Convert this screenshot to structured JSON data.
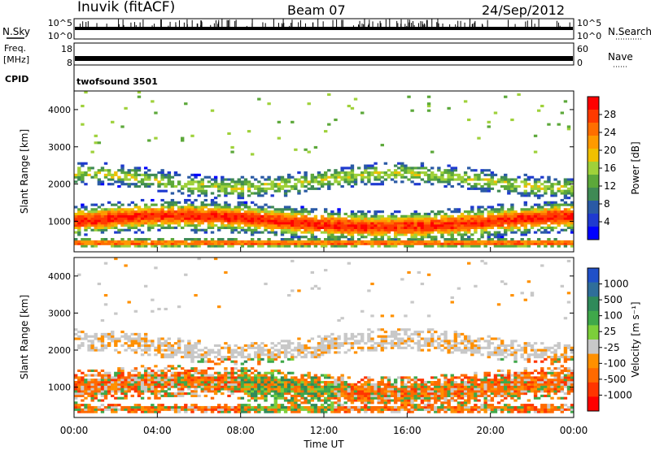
{
  "header": {
    "station": "Inuvik (fitACF)",
    "beam": "Beam 07",
    "date": "24/Sep/2012"
  },
  "panels": {
    "nsky": {
      "label": "N.Sky",
      "right_label": "N.Search",
      "left_ticks": [
        "10^5",
        "10^0"
      ],
      "right_ticks": [
        "10^5",
        "10^0"
      ]
    },
    "freq": {
      "label_line1": "Freq.",
      "label_line2": "[MHz]",
      "right_label": "Nave",
      "left_ticks": [
        "18",
        "8"
      ],
      "right_ticks": [
        "60",
        "0"
      ]
    },
    "cpid": {
      "label": "CPID",
      "value": "twofsound 3501"
    }
  },
  "power_colorbar": {
    "label": "Power [dB]",
    "ticks": [
      "28",
      "24",
      "20",
      "16",
      "12",
      "8",
      "4"
    ],
    "colors": [
      "#ff0000",
      "#ff3a00",
      "#ff6e00",
      "#ff9a00",
      "#f0c000",
      "#9fd13a",
      "#5ca83a",
      "#3f8a55",
      "#2a5aa5",
      "#1f3ad0",
      "#0000ff"
    ]
  },
  "velocity_colorbar": {
    "label": "Velocity [m s⁻¹]",
    "ticks": [
      "1000",
      "500",
      "100",
      "25",
      "-25",
      "-100",
      "-500",
      "-1000"
    ],
    "colors": [
      "#2050c8",
      "#2f6e9a",
      "#2f8a5a",
      "#3fa84a",
      "#7ccf3a",
      "#c8c8c8",
      "#ff9000",
      "#ff6a00",
      "#ff3500",
      "#ff0000"
    ]
  },
  "chart_data": [
    {
      "type": "heatmap",
      "name": "power",
      "xlabel": "",
      "ylabel": "Slant Range [km]",
      "y_ticks": [
        1000,
        2000,
        3000,
        4000
      ],
      "ylim": [
        180,
        4500
      ],
      "x_range_hours": [
        0,
        24
      ],
      "z_label": "Power [dB]",
      "z_range": [
        0,
        30
      ]
    },
    {
      "type": "heatmap",
      "name": "velocity",
      "xlabel": "Time UT",
      "ylabel": "Slant Range [km]",
      "x_ticks": [
        "00:00",
        "04:00",
        "08:00",
        "12:00",
        "16:00",
        "20:00",
        "00:00"
      ],
      "y_ticks": [
        1000,
        2000,
        3000,
        4000
      ],
      "ylim": [
        180,
        4500
      ],
      "x_range_hours": [
        0,
        24
      ],
      "z_label": "Velocity [m s⁻¹]",
      "z_range": [
        -1000,
        1000
      ]
    }
  ]
}
